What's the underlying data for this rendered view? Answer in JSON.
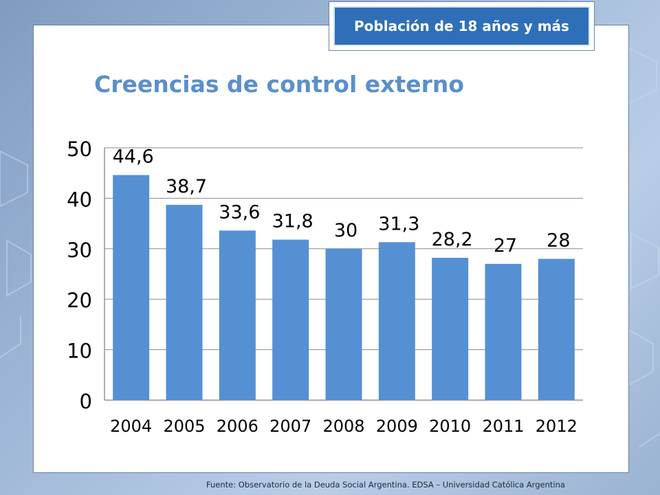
{
  "header": {
    "badge_text": "Población de 18 años y más"
  },
  "chart_data": {
    "type": "bar",
    "title": "Creencias de control externo",
    "categories": [
      "2004",
      "2005",
      "2006",
      "2007",
      "2008",
      "2009",
      "2010",
      "2011",
      "2012"
    ],
    "values": [
      44.6,
      38.7,
      33.6,
      31.8,
      30,
      31.3,
      28.2,
      27,
      28
    ],
    "data_labels": [
      "44,6",
      "38,7",
      "33,6",
      "31,8",
      "30",
      "31,3",
      "28,2",
      "27",
      "28"
    ],
    "ylim": [
      0,
      50
    ],
    "yticks": [
      0,
      10,
      20,
      30,
      40,
      50
    ],
    "grid": true,
    "legend": false,
    "bar_color": "#5590d3"
  },
  "footer": {
    "source": "Fuente:   Observatorio de  la Deuda Social Argentina. EDSA  – Universidad Católica Argentina"
  }
}
